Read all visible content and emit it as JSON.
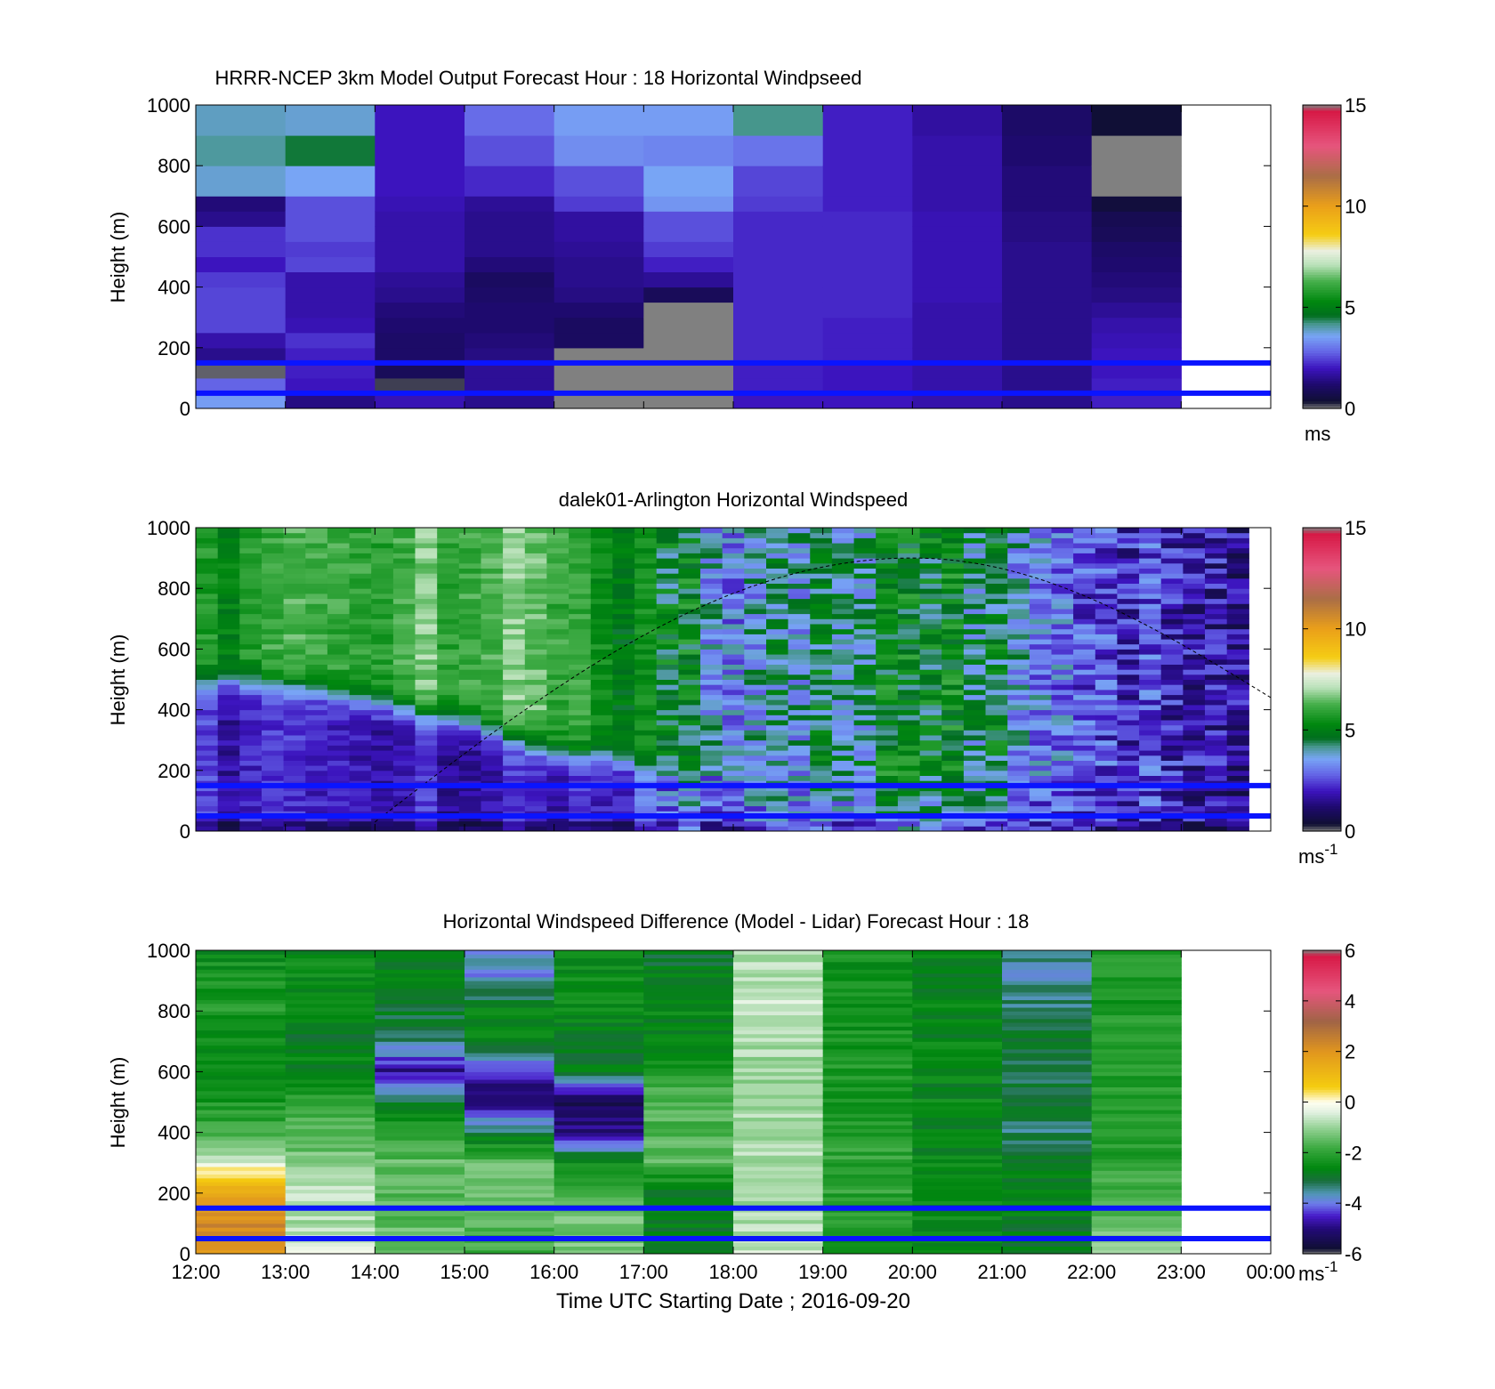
{
  "figure": {
    "xlabel": "Time UTC  Starting Date ; 2016-09-20",
    "xticks": [
      "12:00",
      "13:00",
      "14:00",
      "15:00",
      "16:00",
      "17:00",
      "18:00",
      "19:00",
      "20:00",
      "21:00",
      "22:00",
      "23:00",
      "00:00"
    ]
  },
  "chart_data": [
    {
      "type": "heatmap",
      "title": "HRRR-NCEP 3km Model Output   Forecast Hour : 18 Horizontal Windpseed",
      "ylabel": "Height (m)",
      "ylim": [
        0,
        1000
      ],
      "yticks": [
        "0",
        "200",
        "400",
        "600",
        "800",
        "1000"
      ],
      "xlim": [
        "12:00",
        "00:00"
      ],
      "colorbar": {
        "range": [
          0,
          15
        ],
        "ticks": [
          "0",
          "5",
          "10",
          "15"
        ],
        "unit": "ms"
      },
      "reference_lines_m": [
        50,
        150
      ],
      "x_hours": [
        "12:00",
        "13:00",
        "14:00",
        "15:00",
        "16:00",
        "17:00",
        "18:00",
        "19:00",
        "20:00",
        "21:00",
        "22:00"
      ],
      "height_levels_m": [
        0,
        50,
        100,
        150,
        200,
        250,
        300,
        350,
        400,
        450,
        500,
        550,
        600,
        650,
        700,
        800,
        900,
        1000
      ],
      "values": [
        [
          3.5,
          2.8,
          0.1,
          1.5,
          1.8,
          2.5,
          2.5,
          2.5,
          2.4,
          2.0,
          2.3,
          2.3,
          1.5,
          1.3,
          3.8,
          4.1,
          3.9,
          3.6
        ],
        [
          1.4,
          2.0,
          2.1,
          2.1,
          2.3,
          1.9,
          1.8,
          1.8,
          1.8,
          2.5,
          2.4,
          2.6,
          2.6,
          2.6,
          3.6,
          4.5,
          3.8,
          2.8
        ],
        [
          1.9,
          0.2,
          0.9,
          1.1,
          1.1,
          1.2,
          1.3,
          1.5,
          1.6,
          1.8,
          1.8,
          1.8,
          1.8,
          1.9,
          2.0,
          2.0,
          2.0,
          1.7
        ],
        [
          1.5,
          1.6,
          1.6,
          1.4,
          1.3,
          1.2,
          1.2,
          1.1,
          1.0,
          1.3,
          1.5,
          1.5,
          1.5,
          1.6,
          2.2,
          2.6,
          2.9,
          2.2
        ],
        [
          0.0,
          0.0,
          0.0,
          0.0,
          1.0,
          1.0,
          1.2,
          1.4,
          1.5,
          1.5,
          1.6,
          1.7,
          1.7,
          2.4,
          2.6,
          3.3,
          3.5,
          3.1
        ],
        [
          0.0,
          0.0,
          0.0,
          0.0,
          0.0,
          0.0,
          0.0,
          0.9,
          1.6,
          2.1,
          2.4,
          2.6,
          2.6,
          3.4,
          3.6,
          3.2,
          3.5,
          3.4
        ],
        [
          2.0,
          2.1,
          2.1,
          2.2,
          2.2,
          2.2,
          2.2,
          2.2,
          2.2,
          2.2,
          2.2,
          2.2,
          2.2,
          2.4,
          2.5,
          3.0,
          4.2,
          4.0
        ],
        [
          2.0,
          2.0,
          2.0,
          2.1,
          2.1,
          2.1,
          2.2,
          2.2,
          2.2,
          2.2,
          2.2,
          2.2,
          2.2,
          2.1,
          2.1,
          2.1,
          2.1,
          2.0
        ],
        [
          1.8,
          1.8,
          1.8,
          1.8,
          1.8,
          1.8,
          1.8,
          1.9,
          1.9,
          1.9,
          1.9,
          1.9,
          1.9,
          1.8,
          1.8,
          1.8,
          1.7,
          1.6
        ],
        [
          1.5,
          1.5,
          1.5,
          1.5,
          1.5,
          1.5,
          1.5,
          1.5,
          1.5,
          1.5,
          1.5,
          1.4,
          1.4,
          1.3,
          1.3,
          1.2,
          1.1,
          1.0
        ],
        [
          2.1,
          2.1,
          2.0,
          2.0,
          1.9,
          1.8,
          1.6,
          1.4,
          1.3,
          1.2,
          1.1,
          0.9,
          0.8,
          0.5,
          0.0,
          0.0,
          0.4,
          0.6
        ]
      ]
    },
    {
      "type": "heatmap",
      "title": "dalek01-Arlington  Horizontal Windspeed",
      "ylabel": "Height (m)",
      "ylim": [
        0,
        1000
      ],
      "yticks": [
        "0",
        "200",
        "400",
        "600",
        "800",
        "1000"
      ],
      "xlim": [
        "12:00",
        "00:00"
      ],
      "colorbar": {
        "range": [
          0,
          15
        ],
        "ticks": [
          "0",
          "5",
          "10",
          "15"
        ],
        "unit": "ms",
        "unit_exp": "-1"
      },
      "reference_lines_m": [
        50,
        150
      ],
      "annotation_curve": {
        "style": "dashed",
        "start": [
          "14:00",
          30
        ],
        "peak": [
          "20:00",
          900
        ],
        "end": [
          "00:00",
          440
        ]
      },
      "x_hours": [
        "12:00",
        "13:00",
        "14:00",
        "15:00",
        "16:00",
        "17:00",
        "18:00",
        "19:00",
        "20:00",
        "21:00",
        "22:00",
        "23:00"
      ],
      "transition_height_m": [
        500,
        480,
        420,
        360,
        260,
        220,
        150,
        120,
        110,
        120,
        130,
        140
      ],
      "speed_below_m_s": [
        2.2,
        2.0,
        2.0,
        2.0,
        1.9,
        2.8,
        3.2,
        3.6,
        3.8,
        3.5,
        2.6,
        2.0
      ],
      "speed_above_m_s": [
        5.5,
        6.0,
        6.2,
        6.5,
        6.2,
        5.3,
        3.6,
        4.4,
        4.7,
        4.5,
        2.8,
        2.2
      ]
    },
    {
      "type": "heatmap",
      "title": "Horizontal Windspeed Difference (Model - Lidar) Forecast Hour : 18",
      "ylabel": "Height (m)",
      "ylim": [
        0,
        1000
      ],
      "yticks": [
        "0",
        "200",
        "400",
        "600",
        "800",
        "1000"
      ],
      "xlim": [
        "12:00",
        "00:00"
      ],
      "colorbar": {
        "range": [
          -6,
          6
        ],
        "ticks": [
          "-6",
          "-4",
          "-2",
          "0",
          "2",
          "4",
          "6"
        ],
        "unit": "ms",
        "unit_exp": "-1"
      },
      "reference_lines_m": [
        50,
        150
      ],
      "x_hours": [
        "12:00",
        "13:00",
        "14:00",
        "15:00",
        "16:00",
        "17:00",
        "18:00",
        "19:00",
        "20:00",
        "21:00",
        "22:00"
      ],
      "height_levels_m": [
        0,
        100,
        200,
        300,
        400,
        500,
        600,
        700,
        800,
        900,
        1000
      ],
      "values": [
        [
          2.0,
          2.3,
          1.5,
          -0.5,
          -1.8,
          -2.3,
          -2.6,
          -2.4,
          -2.2,
          -2.3,
          -2.5
        ],
        [
          -0.5,
          -0.8,
          -0.6,
          -1.2,
          -1.6,
          -2.0,
          -2.6,
          -2.8,
          -2.6,
          -2.5,
          -2.5
        ],
        [
          -1.3,
          -1.5,
          -1.5,
          -1.5,
          -2.2,
          -3.0,
          -4.8,
          -3.2,
          -2.9,
          -2.8,
          -2.8
        ],
        [
          -1.8,
          -1.6,
          -1.2,
          -1.5,
          -3.2,
          -5.2,
          -4.5,
          -2.6,
          -2.6,
          -3.8,
          -3.8
        ],
        [
          -1.3,
          -1.2,
          -1.6,
          -2.6,
          -5.0,
          -5.4,
          -2.8,
          -2.7,
          -2.6,
          -2.5,
          -2.5
        ],
        [
          -2.8,
          -2.8,
          -2.8,
          -1.6,
          -1.6,
          -1.6,
          -2.2,
          -2.7,
          -2.6,
          -2.8,
          -3.0
        ],
        [
          -0.5,
          -0.9,
          -0.9,
          -0.8,
          -0.9,
          -0.8,
          -1.0,
          -0.8,
          -0.6,
          -0.7,
          -0.8
        ],
        [
          -2.2,
          -2.2,
          -2.0,
          -2.0,
          -2.1,
          -2.2,
          -2.2,
          -2.3,
          -2.4,
          -2.4,
          -2.4
        ],
        [
          -2.6,
          -2.6,
          -2.6,
          -2.6,
          -2.6,
          -2.6,
          -2.6,
          -2.6,
          -2.6,
          -2.6,
          -2.6
        ],
        [
          -2.8,
          -2.8,
          -2.6,
          -3.0,
          -3.3,
          -3.0,
          -3.3,
          -3.0,
          -3.3,
          -3.6,
          -3.3
        ],
        [
          -1.2,
          -1.4,
          -1.8,
          -2.0,
          -2.2,
          -2.1,
          -2.2,
          -2.1,
          -2.2,
          -2.3,
          -2.2
        ]
      ]
    }
  ]
}
